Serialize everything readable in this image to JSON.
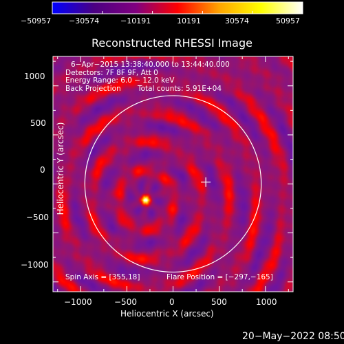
{
  "chart_data": {
    "type": "heatmap",
    "title": "Reconstructed RHESSI Image",
    "xlabel": "Heliocentric X (arcsec)",
    "ylabel": "Heliocentric Y (arcsec)",
    "xlim": [
      -1300,
      1300
    ],
    "ylim": [
      -1100,
      1300
    ],
    "x_ticks": [
      -1000,
      -500,
      0,
      500,
      1000
    ],
    "y_ticks": [
      -1000,
      -500,
      0,
      500,
      1000
    ],
    "x_tick_labels": [
      "−1000",
      "−500",
      "0",
      "500",
      "1000"
    ],
    "y_tick_labels": [
      "−1000",
      "−500",
      "0",
      "500",
      "1000"
    ],
    "colorbar": {
      "min": -50957,
      "max": 50957,
      "tick_labels": [
        "−50957",
        "−30574",
        "−10191",
        "10191",
        "30574",
        "50957"
      ],
      "colors": [
        "#0000ff",
        "#4b0082",
        "#800080",
        "#ff0000",
        "#ffa500",
        "#ffff00",
        "#ffffff"
      ]
    },
    "annotations": {
      "time_range": "6−Apr−2015 13:38:40.000 to 13:44:40.000",
      "detectors": "Detectors: 7F 8F 9F, Att 0",
      "energy": "Energy Range: 6.0 − 12.0 keV",
      "method": "Back Projection",
      "counts": "Total counts: 5.91E+04",
      "spin_axis": "Spin Axis = [355,18]",
      "flare_position": "Flare Position = [−297,−165]"
    },
    "flare_position": [
      -297,
      -165
    ],
    "sun_center": [
      0,
      0
    ],
    "solar_radius_arcsec": 955,
    "spin_axis": [
      355,
      18
    ]
  },
  "footer": {
    "timestamp": "20−May−2022 08:50"
  }
}
